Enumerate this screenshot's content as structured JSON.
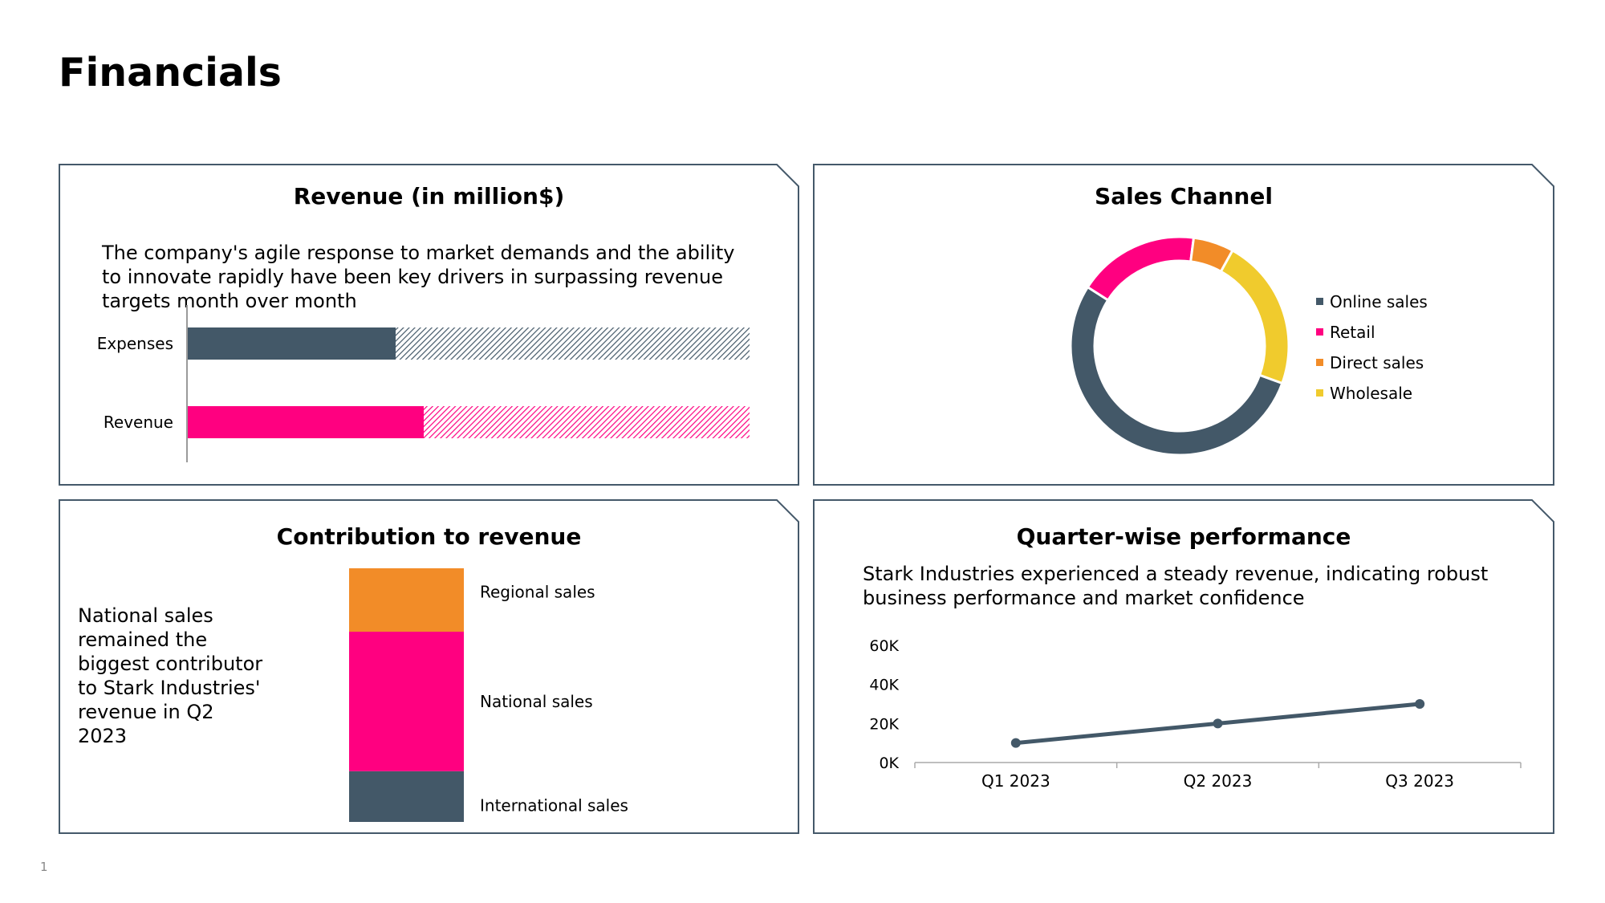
{
  "page": {
    "title": "Financials",
    "slide_number": "1"
  },
  "colors": {
    "slate": "#435868",
    "pink": "#ff0080",
    "orange": "#f28c28",
    "yellow": "#f0cb2d",
    "frame": "#45596a"
  },
  "revenue_panel": {
    "title": "Revenue (in million$)",
    "description": "The company's agile response to market demands and the ability to innovate rapidly have been key drivers in surpassing revenue targets month over month"
  },
  "sales_channel_panel": {
    "title": "Sales Channel"
  },
  "contribution_panel": {
    "title": "Contribution to revenue",
    "description": "National sales remained the biggest contributor to Stark Industries' revenue in Q2 2023"
  },
  "quarter_panel": {
    "title": "Quarter-wise performance",
    "description": "Stark Industries experienced a steady revenue, indicating robust business performance and market confidence"
  },
  "chart_data": [
    {
      "type": "bar",
      "orientation": "horizontal",
      "categories": [
        "Expenses",
        "Revenue"
      ],
      "series": [
        {
          "values": [
            37,
            42
          ]
        },
        {
          "pattern": "hatched",
          "values": [
            63,
            58
          ]
        }
      ],
      "xlim": [
        0,
        100
      ]
    },
    {
      "type": "pie",
      "style": "donut",
      "labels": [
        "Online sales",
        "Retail",
        "Direct sales",
        "Wholesale"
      ],
      "values": [
        53.5,
        18,
        6,
        22.5
      ],
      "colors": [
        "#435868",
        "#ff0080",
        "#f28c28",
        "#f0cb2d"
      ],
      "legend": "right"
    },
    {
      "type": "bar",
      "stacked": true,
      "categories": [
        "Q2 2023"
      ],
      "series": [
        {
          "name": "International sales",
          "values": [
            20
          ]
        },
        {
          "name": "National sales",
          "values": [
            55
          ]
        },
        {
          "name": "Regional sales",
          "values": [
            25
          ]
        }
      ],
      "colors": [
        "#435868",
        "#ff0080",
        "#f28c28"
      ]
    },
    {
      "type": "line",
      "categories": [
        "Q1 2023",
        "Q2 2023",
        "Q3 2023"
      ],
      "values": [
        10000,
        20000,
        30000
      ],
      "yticks": [
        "0K",
        "20K",
        "40K",
        "60K"
      ],
      "ylim": [
        0,
        60000
      ],
      "color": "#435868"
    }
  ]
}
